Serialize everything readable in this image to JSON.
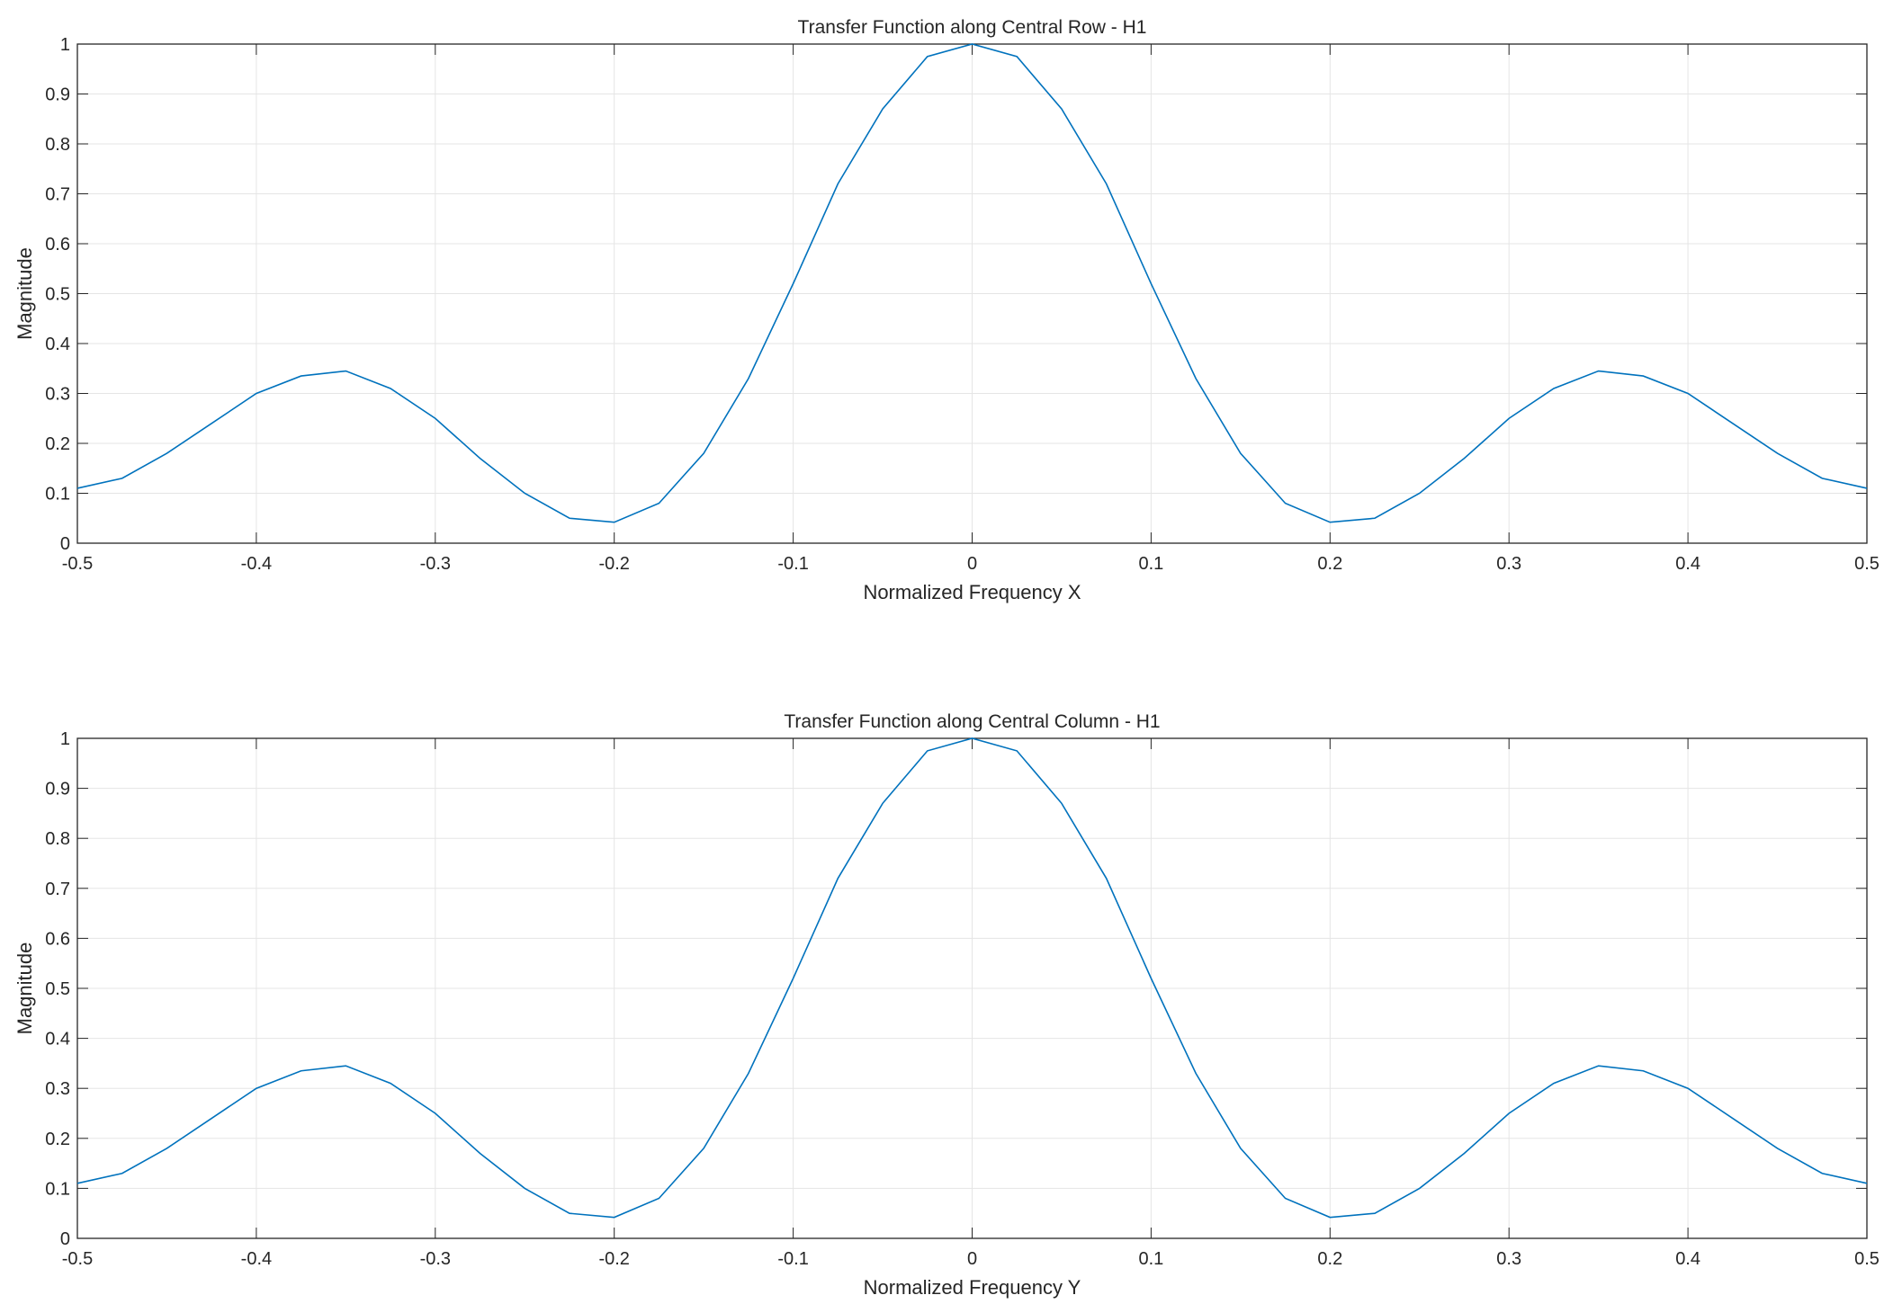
{
  "chart_data": [
    {
      "type": "line",
      "title": "Transfer Function along Central Row - H1",
      "x_label": "Normalized Frequency X",
      "y_label": "Magnitude",
      "x": [
        -0.5,
        -0.475,
        -0.45,
        -0.425,
        -0.4,
        -0.375,
        -0.35,
        -0.325,
        -0.3,
        -0.275,
        -0.25,
        -0.225,
        -0.2,
        -0.175,
        -0.15,
        -0.125,
        -0.1,
        -0.075,
        -0.05,
        -0.025,
        0,
        0.025,
        0.05,
        0.075,
        0.1,
        0.125,
        0.15,
        0.175,
        0.2,
        0.225,
        0.25,
        0.275,
        0.3,
        0.325,
        0.35,
        0.375,
        0.4,
        0.425,
        0.45,
        0.475,
        0.5
      ],
      "series": [
        {
          "color": "#0072bd",
          "values": [
            0.11,
            0.13,
            0.18,
            0.24,
            0.3,
            0.335,
            0.345,
            0.31,
            0.25,
            0.17,
            0.1,
            0.05,
            0.042,
            0.08,
            0.18,
            0.33,
            0.52,
            0.72,
            0.87,
            0.975,
            1.0,
            0.975,
            0.87,
            0.72,
            0.52,
            0.33,
            0.18,
            0.08,
            0.042,
            0.05,
            0.1,
            0.17,
            0.25,
            0.31,
            0.345,
            0.335,
            0.3,
            0.24,
            0.18,
            0.13,
            0.11
          ]
        }
      ],
      "xlim": [
        -0.5,
        0.5
      ],
      "xticks": [
        -0.5,
        -0.4,
        -0.3,
        -0.2,
        -0.1,
        0,
        0.1,
        0.2,
        0.3,
        0.4,
        0.5
      ],
      "ylim": [
        0,
        1
      ],
      "yticks": [
        0,
        0.1,
        0.2,
        0.3,
        0.4,
        0.5,
        0.6,
        0.7,
        0.8,
        0.9,
        1
      ],
      "grid": true
    },
    {
      "type": "line",
      "title": "Transfer Function along Central Column - H1",
      "x_label": "Normalized Frequency Y",
      "y_label": "Magnitude",
      "x": [
        -0.5,
        -0.475,
        -0.45,
        -0.425,
        -0.4,
        -0.375,
        -0.35,
        -0.325,
        -0.3,
        -0.275,
        -0.25,
        -0.225,
        -0.2,
        -0.175,
        -0.15,
        -0.125,
        -0.1,
        -0.075,
        -0.05,
        -0.025,
        0,
        0.025,
        0.05,
        0.075,
        0.1,
        0.125,
        0.15,
        0.175,
        0.2,
        0.225,
        0.25,
        0.275,
        0.3,
        0.325,
        0.35,
        0.375,
        0.4,
        0.425,
        0.45,
        0.475,
        0.5
      ],
      "series": [
        {
          "color": "#0072bd",
          "values": [
            0.11,
            0.13,
            0.18,
            0.24,
            0.3,
            0.335,
            0.345,
            0.31,
            0.25,
            0.17,
            0.1,
            0.05,
            0.042,
            0.08,
            0.18,
            0.33,
            0.52,
            0.72,
            0.87,
            0.975,
            1.0,
            0.975,
            0.87,
            0.72,
            0.52,
            0.33,
            0.18,
            0.08,
            0.042,
            0.05,
            0.1,
            0.17,
            0.25,
            0.31,
            0.345,
            0.335,
            0.3,
            0.24,
            0.18,
            0.13,
            0.11
          ]
        }
      ],
      "xlim": [
        -0.5,
        0.5
      ],
      "xticks": [
        -0.5,
        -0.4,
        -0.3,
        -0.2,
        -0.1,
        0,
        0.1,
        0.2,
        0.3,
        0.4,
        0.5
      ],
      "ylim": [
        0,
        1
      ],
      "yticks": [
        0,
        0.1,
        0.2,
        0.3,
        0.4,
        0.5,
        0.6,
        0.7,
        0.8,
        0.9,
        1
      ],
      "grid": true
    }
  ]
}
